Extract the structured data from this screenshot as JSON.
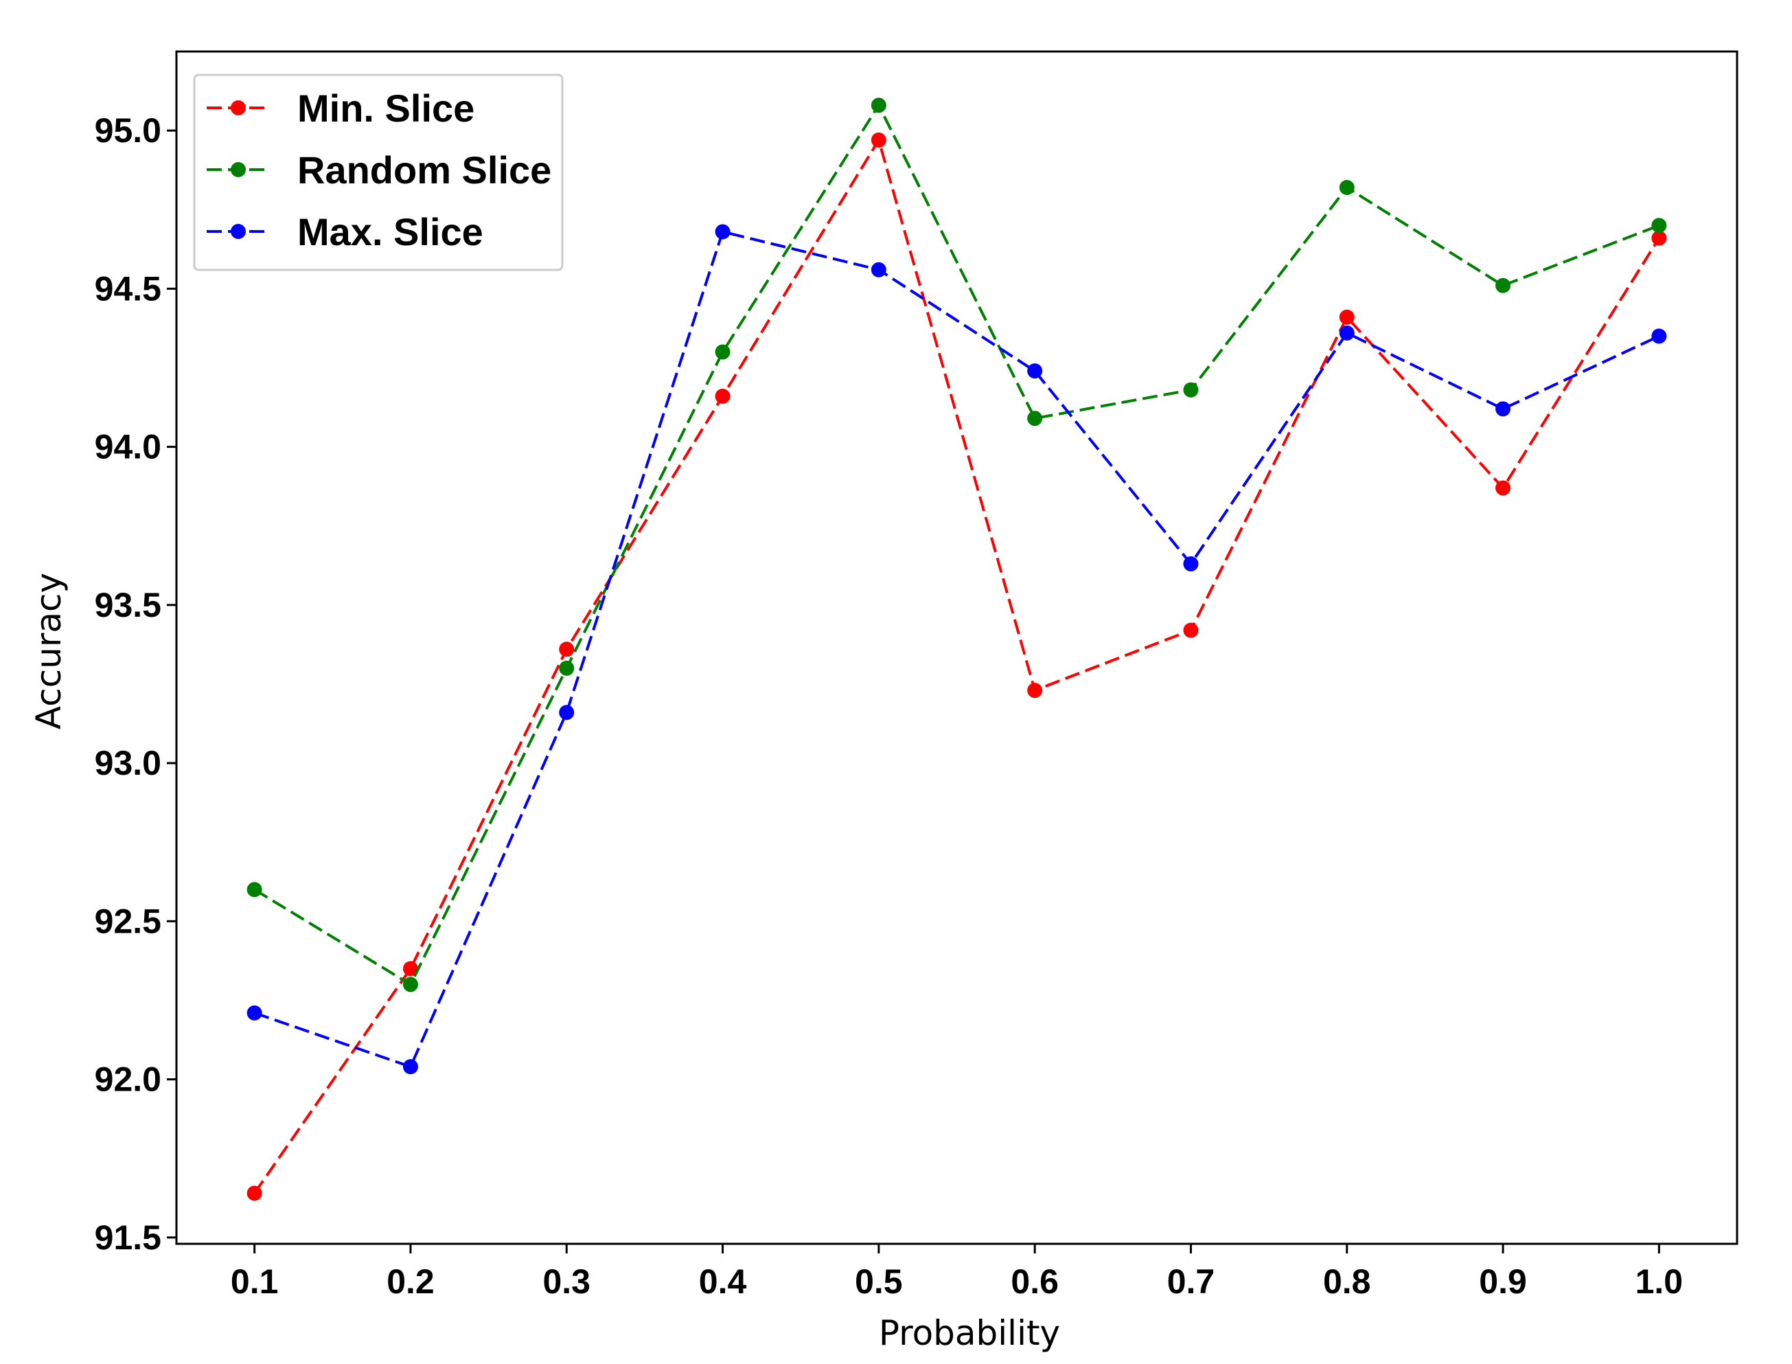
{
  "chart_data": {
    "type": "line",
    "title": "",
    "xlabel": "Probability",
    "ylabel": "Accuracy",
    "x": [
      0.1,
      0.2,
      0.3,
      0.4,
      0.5,
      0.6,
      0.7,
      0.8,
      0.9,
      1.0
    ],
    "x_tick_labels": [
      "0.1",
      "0.2",
      "0.3",
      "0.4",
      "0.5",
      "0.6",
      "0.7",
      "0.8",
      "0.9",
      "1.0"
    ],
    "y_ticks": [
      91.5,
      92.0,
      92.5,
      93.0,
      93.5,
      94.0,
      94.5,
      95.0
    ],
    "y_tick_labels": [
      "91.5",
      "92.0",
      "92.5",
      "93.0",
      "93.5",
      "94.0",
      "94.5",
      "95.0"
    ],
    "xlim": [
      0.05,
      1.05
    ],
    "ylim": [
      91.48,
      95.25
    ],
    "grid": false,
    "legend_position": "top-left",
    "series": [
      {
        "name": "Min. Slice",
        "color": "#ff0000",
        "values": [
          91.64,
          92.35,
          93.36,
          94.16,
          94.97,
          93.23,
          93.42,
          94.41,
          93.87,
          94.66
        ]
      },
      {
        "name": "Random Slice",
        "color": "#008000",
        "values": [
          92.6,
          92.3,
          93.3,
          94.3,
          95.08,
          94.09,
          94.18,
          94.82,
          94.51,
          94.7
        ]
      },
      {
        "name": "Max. Slice",
        "color": "#0000ff",
        "values": [
          92.21,
          92.04,
          93.16,
          94.68,
          94.56,
          94.24,
          93.63,
          94.36,
          94.12,
          94.35
        ]
      }
    ]
  }
}
